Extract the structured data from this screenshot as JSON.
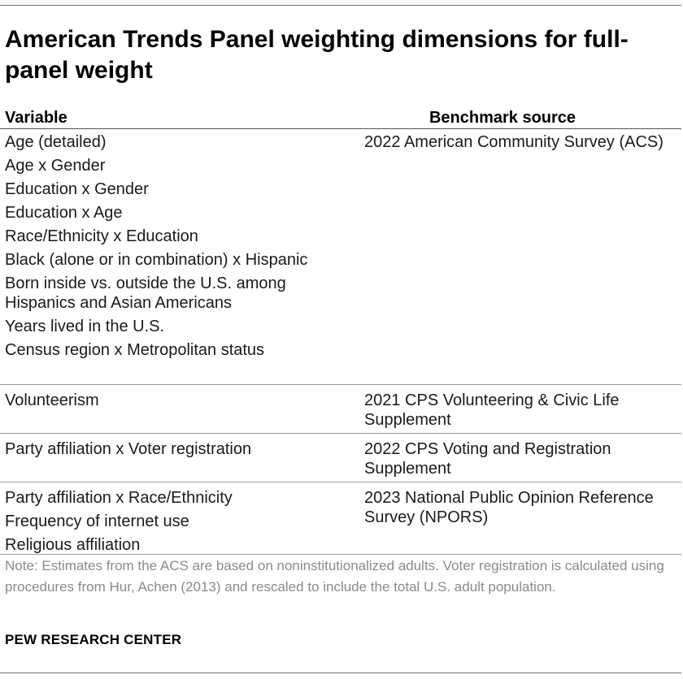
{
  "title": "American Trends Panel weighting dimensions for full-panel weight",
  "table": {
    "headers": {
      "variable": "Variable",
      "benchmark": "Benchmark source"
    },
    "groups": [
      {
        "variables": [
          "Age (detailed)",
          "Age x Gender",
          "Education x Gender",
          "Education x Age",
          "Race/Ethnicity x Education",
          "Black (alone or in combination) x Hispanic",
          "Born inside vs. outside the U.S. among Hispanics and Asian Americans",
          "Years lived in the U.S.",
          "Census region x Metropolitan status"
        ],
        "source": "2022 American Community Survey (ACS)"
      },
      {
        "variables": [
          "Volunteerism"
        ],
        "source": "2021 CPS Volunteering & Civic Life Supplement"
      },
      {
        "variables": [
          "Party affiliation x Voter registration"
        ],
        "source": "2022 CPS Voting and Registration Supplement"
      },
      {
        "variables": [
          "Party affiliation x Race/Ethnicity",
          "Frequency of internet use",
          "Religious affiliation"
        ],
        "source": "2023 National Public Opinion Reference Survey (NPORS)"
      }
    ]
  },
  "note": "Note: Estimates from the ACS are based on noninstitutionalized adults. Voter registration is calculated using procedures from Hur, Achen (2013) and rescaled to include the total U.S. adult population.",
  "source_label": "PEW RESEARCH CENTER"
}
